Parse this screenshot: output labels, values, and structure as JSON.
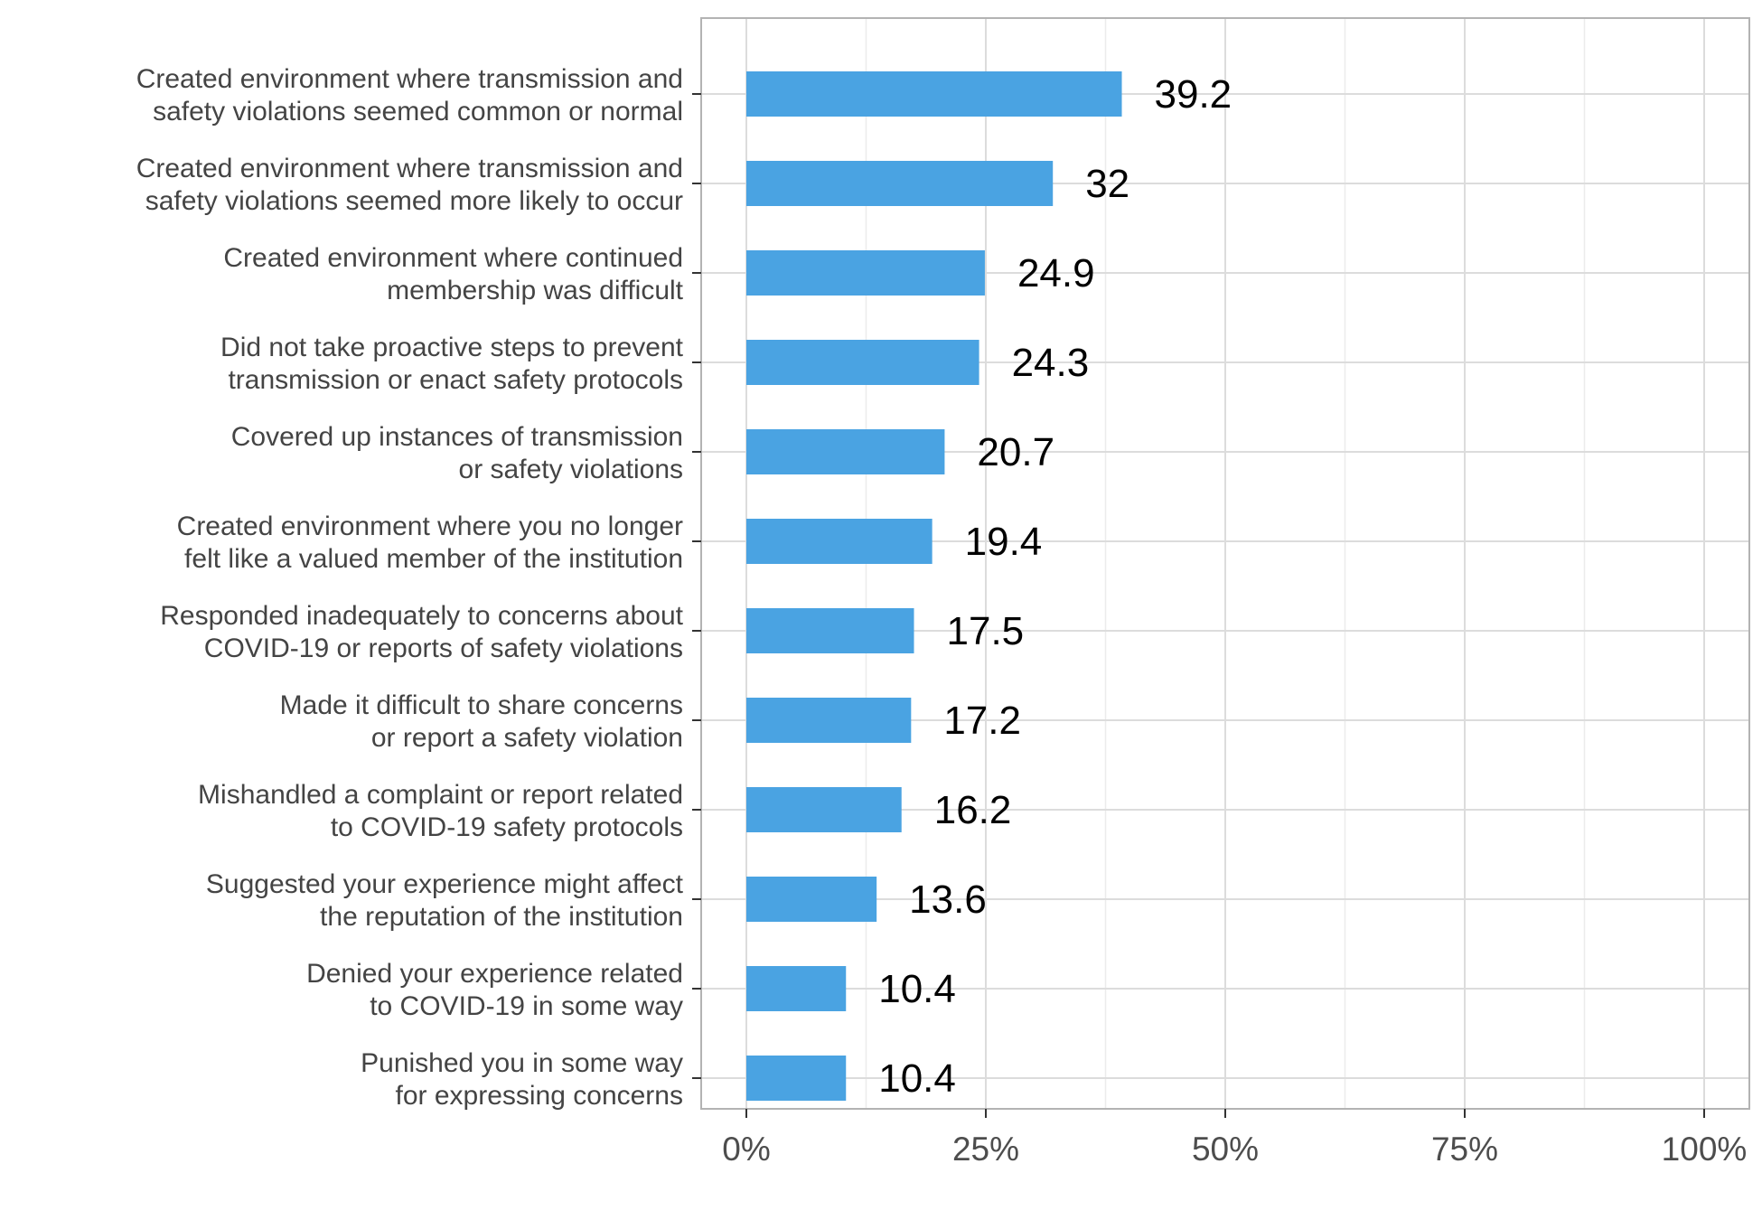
{
  "chart_data": {
    "type": "bar",
    "orientation": "horizontal",
    "categories": [
      [
        "Created environment where transmission and",
        "safety violations seemed common or normal"
      ],
      [
        "Created environment where transmission and",
        "safety violations seemed more likely to occur"
      ],
      [
        "Created environment where continued",
        "membership was difficult"
      ],
      [
        "Did not take proactive steps to prevent",
        "transmission or enact safety protocols"
      ],
      [
        "Covered up instances of transmission",
        "or safety violations"
      ],
      [
        "Created environment where you no longer",
        "felt like a valued member of the institution"
      ],
      [
        "Responded inadequately to concerns about",
        "COVID-19 or reports of safety violations"
      ],
      [
        "Made it difficult to share concerns",
        "or report a safety violation"
      ],
      [
        "Mishandled a complaint or report related",
        "to COVID-19 safety protocols"
      ],
      [
        "Suggested your experience might affect",
        "the reputation of the institution"
      ],
      [
        "Denied your experience related",
        "to COVID-19 in some way"
      ],
      [
        "Punished you in some way",
        "for expressing concerns"
      ]
    ],
    "values": [
      39.2,
      32,
      24.9,
      24.3,
      20.7,
      19.4,
      17.5,
      17.2,
      16.2,
      13.6,
      10.4,
      10.4
    ],
    "value_labels": [
      "39.2",
      "32",
      "24.9",
      "24.3",
      "20.7",
      "19.4",
      "17.5",
      "17.2",
      "16.2",
      "13.6",
      "10.4",
      "10.4"
    ],
    "xlim": [
      0,
      100
    ],
    "x_ticks": [
      0,
      25,
      50,
      75,
      100
    ],
    "x_tick_labels": [
      "0%",
      "25%",
      "50%",
      "75%",
      "100%"
    ],
    "title": "",
    "xlabel": "",
    "ylabel": "",
    "grid": true,
    "legend": "none",
    "colors": {
      "bar": "#4aa3e2",
      "grid_major": "#dcdcdc",
      "grid_minor": "#ececec",
      "panel_border": "#b3b3b3"
    }
  }
}
